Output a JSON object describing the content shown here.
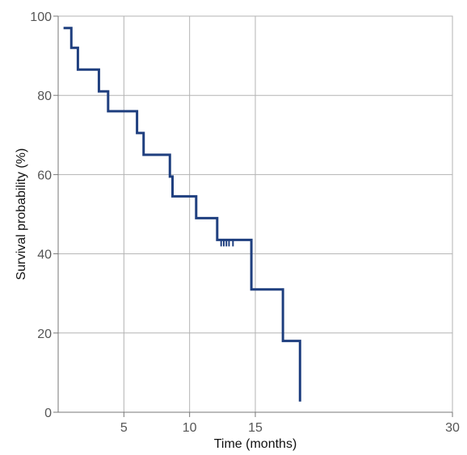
{
  "chart_data": {
    "type": "line",
    "step": true,
    "title": "",
    "xlabel": "Time (months)",
    "ylabel": "Survival probability (%)",
    "xlim": [
      0,
      30
    ],
    "ylim": [
      0,
      100
    ],
    "xticks": [
      5,
      10,
      15,
      30
    ],
    "yticks": [
      0,
      20,
      40,
      60,
      80,
      100
    ],
    "x_tick_labels": [
      "5",
      "10",
      "15",
      "30"
    ],
    "y_tick_labels": [
      "0",
      "20",
      "40",
      "60",
      "80",
      "100"
    ],
    "grid": true,
    "line_color": "#1f3f7f",
    "grid_color": "#b3b3b3",
    "series": [
      {
        "x": [
          0.5,
          1.0,
          1.0,
          1.5,
          1.5,
          3.1,
          3.1,
          3.8,
          3.8,
          6.0,
          6.0,
          6.5,
          6.5,
          8.5,
          8.5,
          8.7,
          8.7,
          10.5,
          10.5,
          12.1,
          12.1,
          14.7,
          14.7,
          17.1,
          17.1,
          18.4,
          18.4
        ],
        "y": [
          97,
          97,
          92,
          92,
          86.5,
          86.5,
          81,
          81,
          76,
          76,
          70.5,
          70.5,
          65,
          65,
          59.5,
          59.5,
          54.5,
          54.5,
          49,
          49,
          43.5,
          43.5,
          31,
          31,
          18,
          18,
          3
        ]
      }
    ],
    "censor_marks": {
      "x": [
        12.4,
        12.6,
        12.8,
        13.0,
        13.3
      ],
      "y": [
        43.5,
        43.5,
        43.5,
        43.5,
        43.5
      ]
    }
  }
}
